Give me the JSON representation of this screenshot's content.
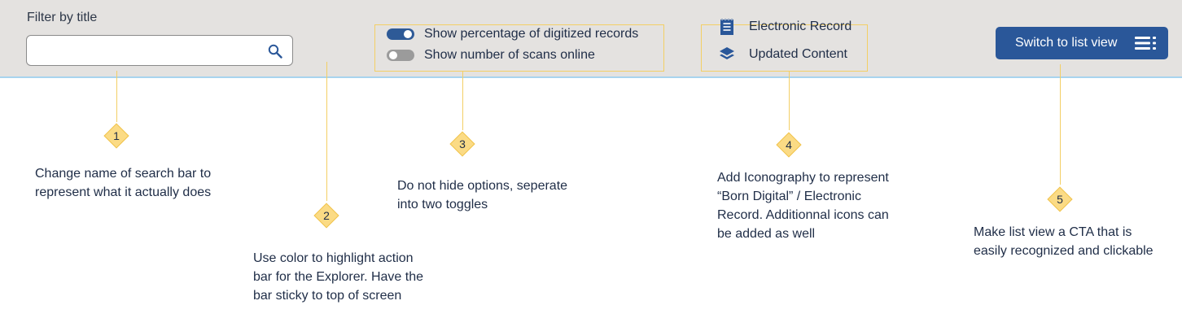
{
  "toolbar": {
    "filter_label": "Filter by title",
    "search": {
      "value": "",
      "placeholder": ""
    },
    "toggles": [
      {
        "label": "Show percentage of digitized records",
        "state": "on"
      },
      {
        "label": "Show number of scans online",
        "state": "off"
      }
    ],
    "legend": [
      {
        "label": "Electronic Record",
        "icon": "electronic-record-icon"
      },
      {
        "label": "Updated Content",
        "icon": "layers-icon"
      }
    ],
    "list_view_button": {
      "label": "Switch to list view",
      "icon": "list-icon"
    }
  },
  "annotations": [
    {
      "number": "1",
      "lines": [
        "Change name of search bar to",
        "represent what it actually does"
      ]
    },
    {
      "number": "2",
      "lines": [
        "Use color to highlight action",
        "bar for the Explorer. Have the",
        "bar sticky to top of screen"
      ]
    },
    {
      "number": "3",
      "lines": [
        "Do not hide options, seperate",
        "into two toggles"
      ]
    },
    {
      "number": "4",
      "lines": [
        "Add Iconography to represent",
        "“Born Digital” / Electronic",
        "Record. Additionnal icons can",
        "be added as well"
      ]
    },
    {
      "number": "5",
      "lines": [
        "Make list view a CTA that is",
        "easily recognized and clickable"
      ]
    }
  ],
  "colors": {
    "bar_background": "#e4e2e0",
    "accent": "#2a5799",
    "annotation_yellow": "#fbdb85",
    "text": "#1f2d47"
  }
}
